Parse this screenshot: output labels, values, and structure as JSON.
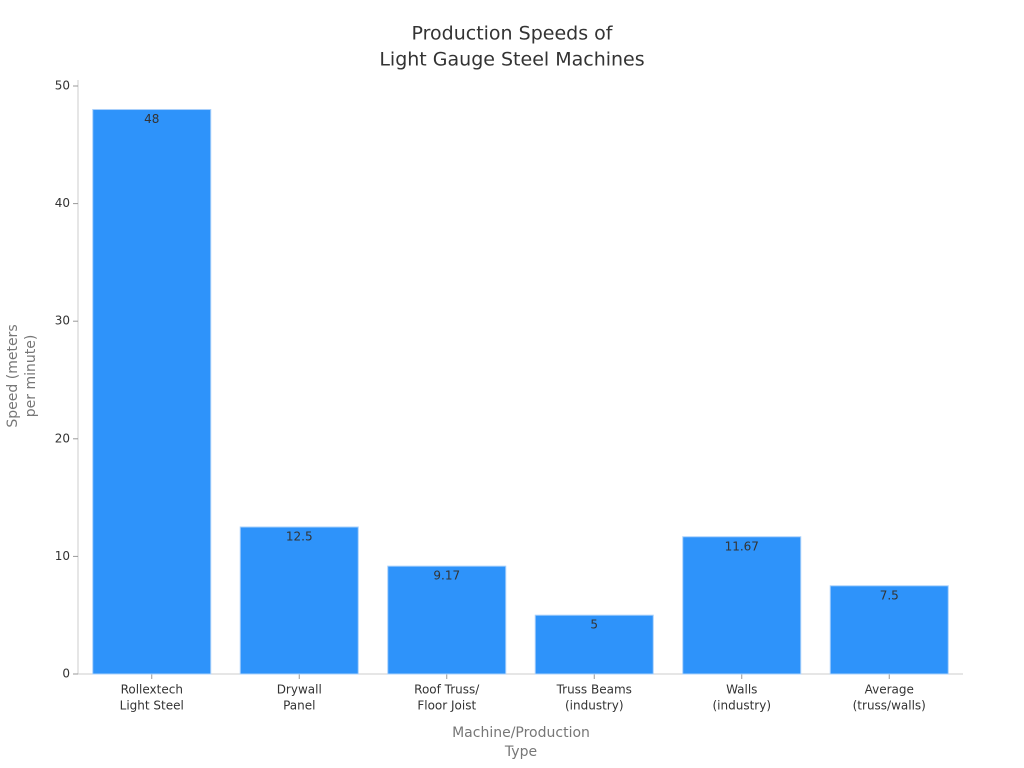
{
  "chart_data": {
    "type": "bar",
    "title": [
      "Production Speeds of",
      "Light Gauge Steel Machines"
    ],
    "x_label": [
      "Machine/Production",
      "Type"
    ],
    "y_label": [
      "Speed (meters",
      "per minute)"
    ],
    "categories": [
      [
        "Rollextech",
        "Light Steel"
      ],
      [
        "Drywall",
        "Panel"
      ],
      [
        "Roof Truss/",
        "Floor Joist"
      ],
      [
        "Truss Beams",
        "(industry)"
      ],
      [
        "Walls",
        "(industry)"
      ],
      [
        "Average",
        "(truss/walls)"
      ]
    ],
    "values": [
      48,
      12.5,
      9.17,
      5,
      11.67,
      7.5
    ],
    "color": "#2e93fa",
    "ylim": [
      0,
      50
    ],
    "yticks": [
      0,
      10,
      20,
      30,
      40,
      50
    ],
    "grid": false
  }
}
